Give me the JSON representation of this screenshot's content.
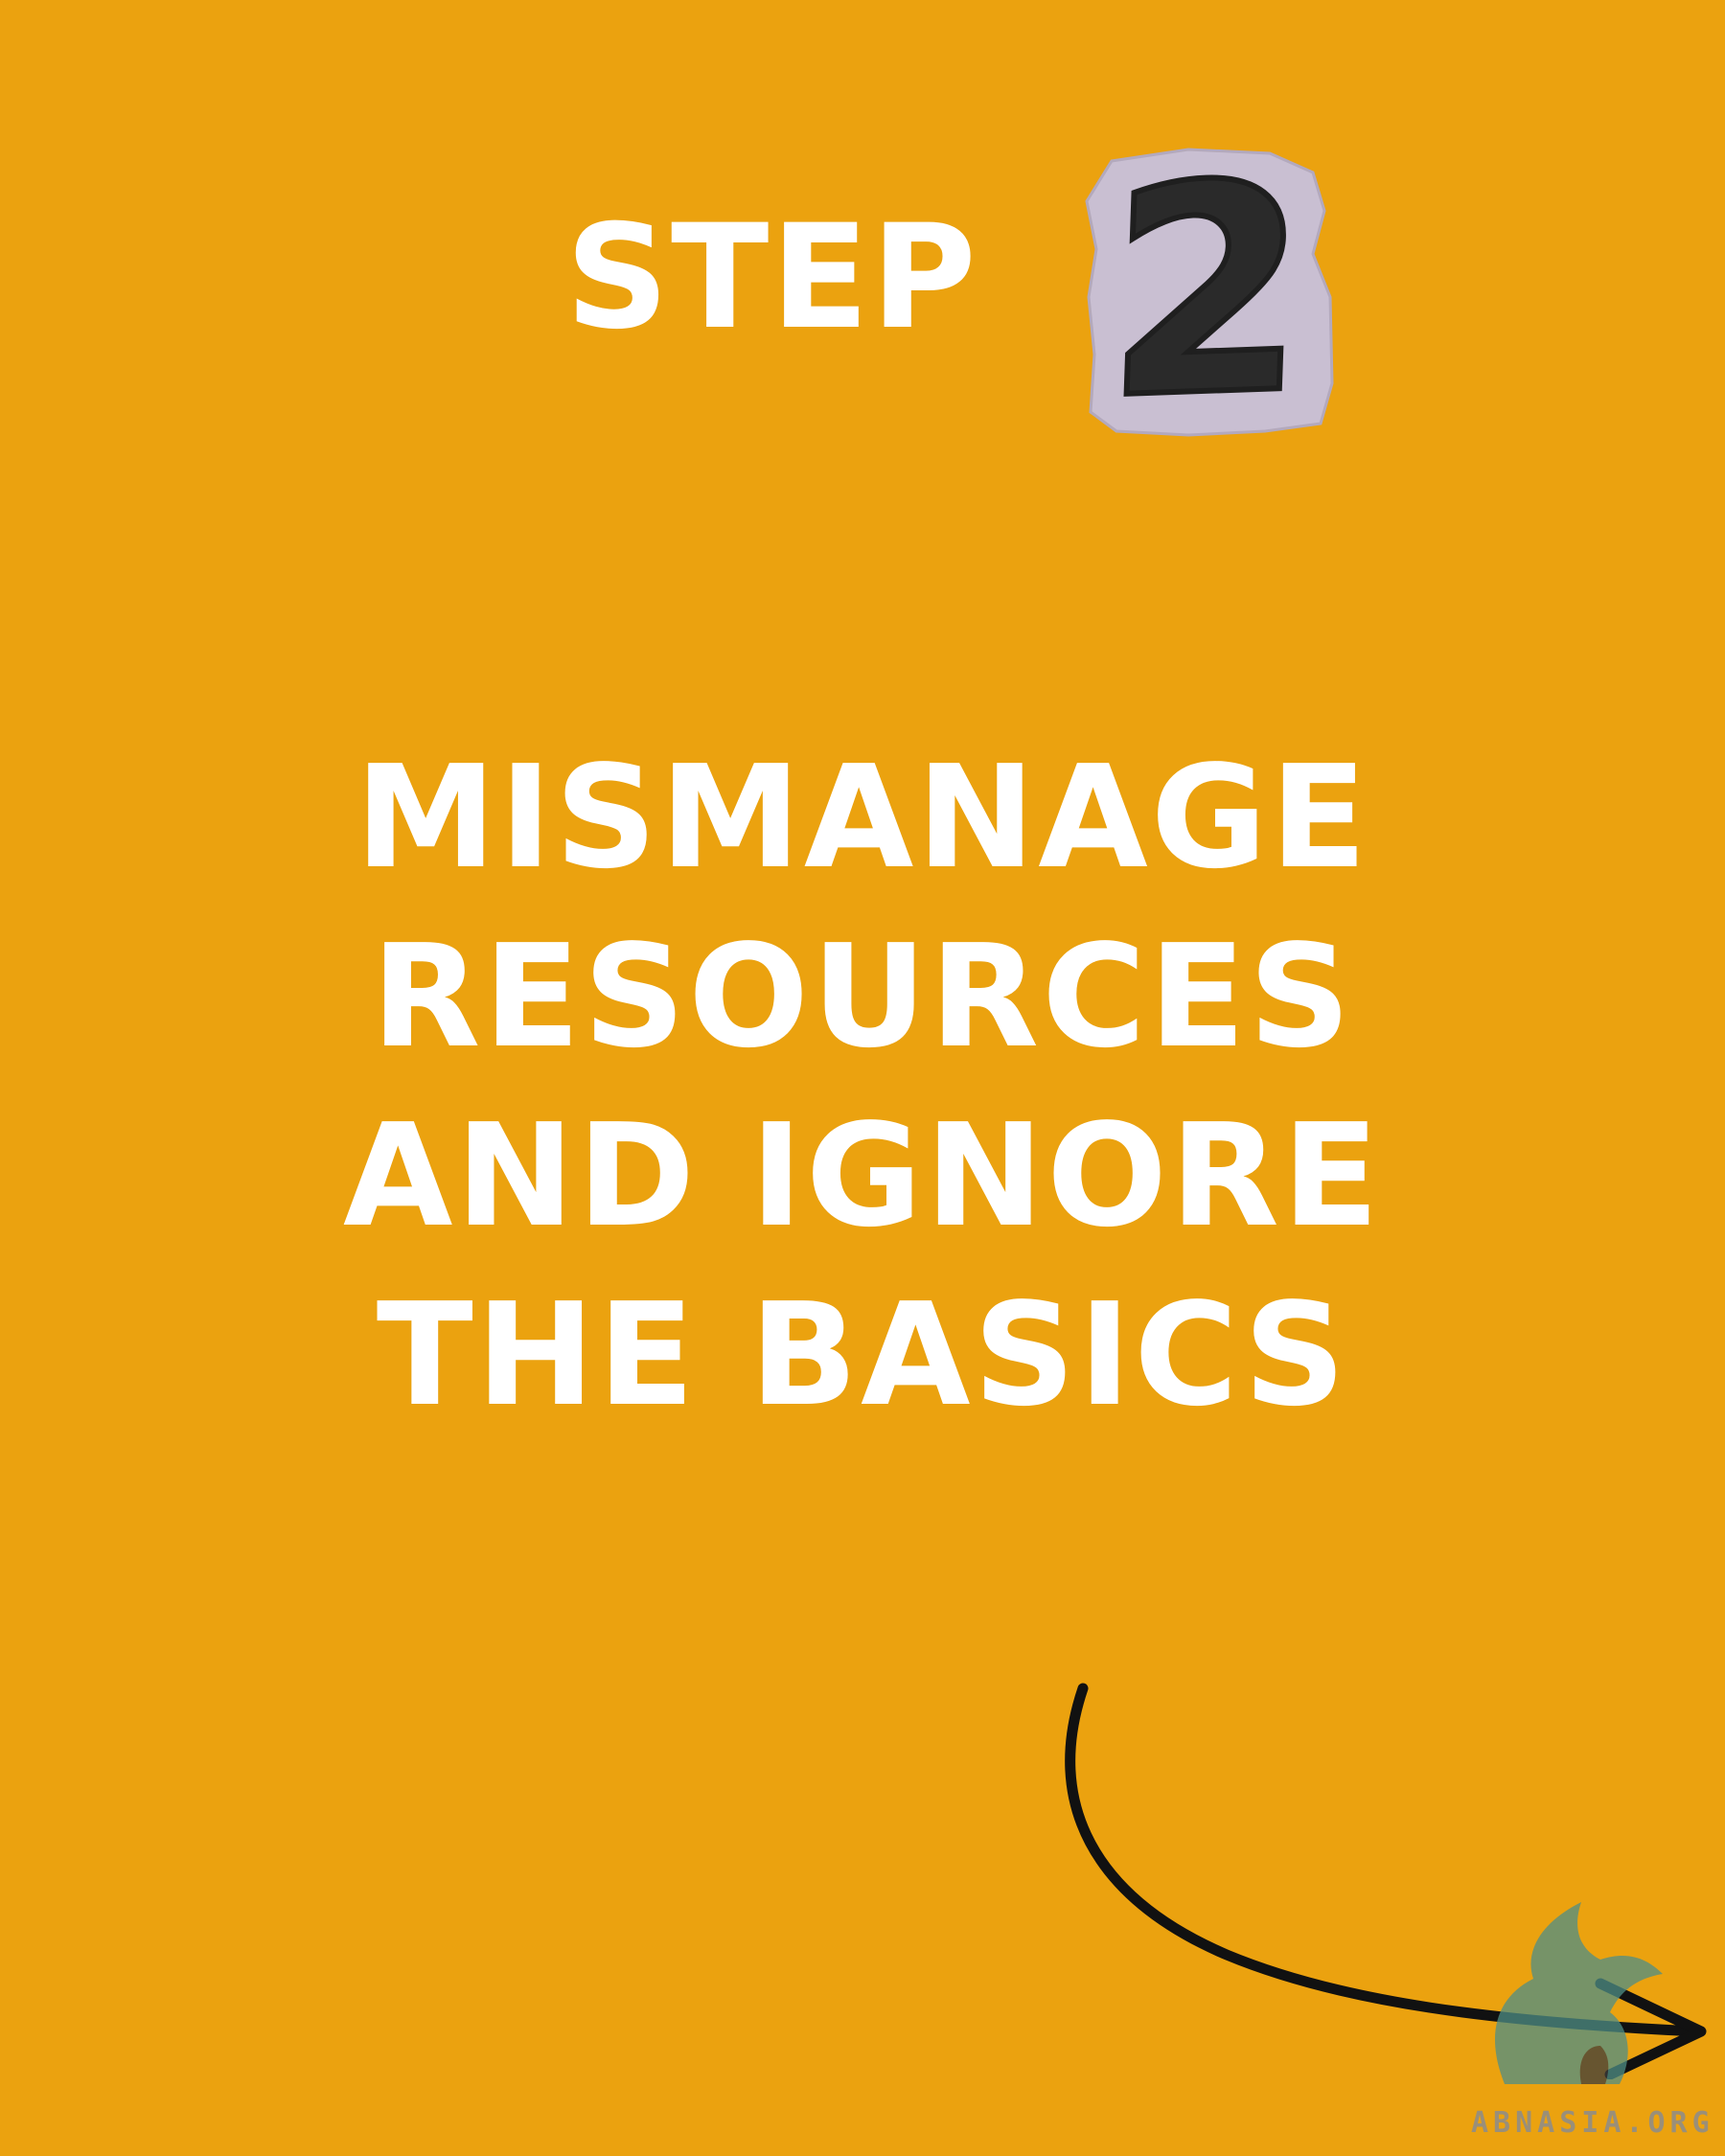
{
  "step": {
    "label": "STEP",
    "number": "2"
  },
  "headline": {
    "lines": [
      "MISMANAGE",
      "RESOURCES",
      "AND IGNORE",
      "THE BASICS"
    ]
  },
  "watermark": {
    "text": "ABNASIA.ORG"
  },
  "icons": {
    "arrow": "curved-arrow-right-icon",
    "logo": "griffin-logo-icon"
  },
  "colors": {
    "background": "#EBA20F",
    "text": "#FFFFFF",
    "badge_paper": "#C9BFD2",
    "badge_digit": "#2A2A2A",
    "arrow": "#111111",
    "logo": "#4F8F86"
  }
}
